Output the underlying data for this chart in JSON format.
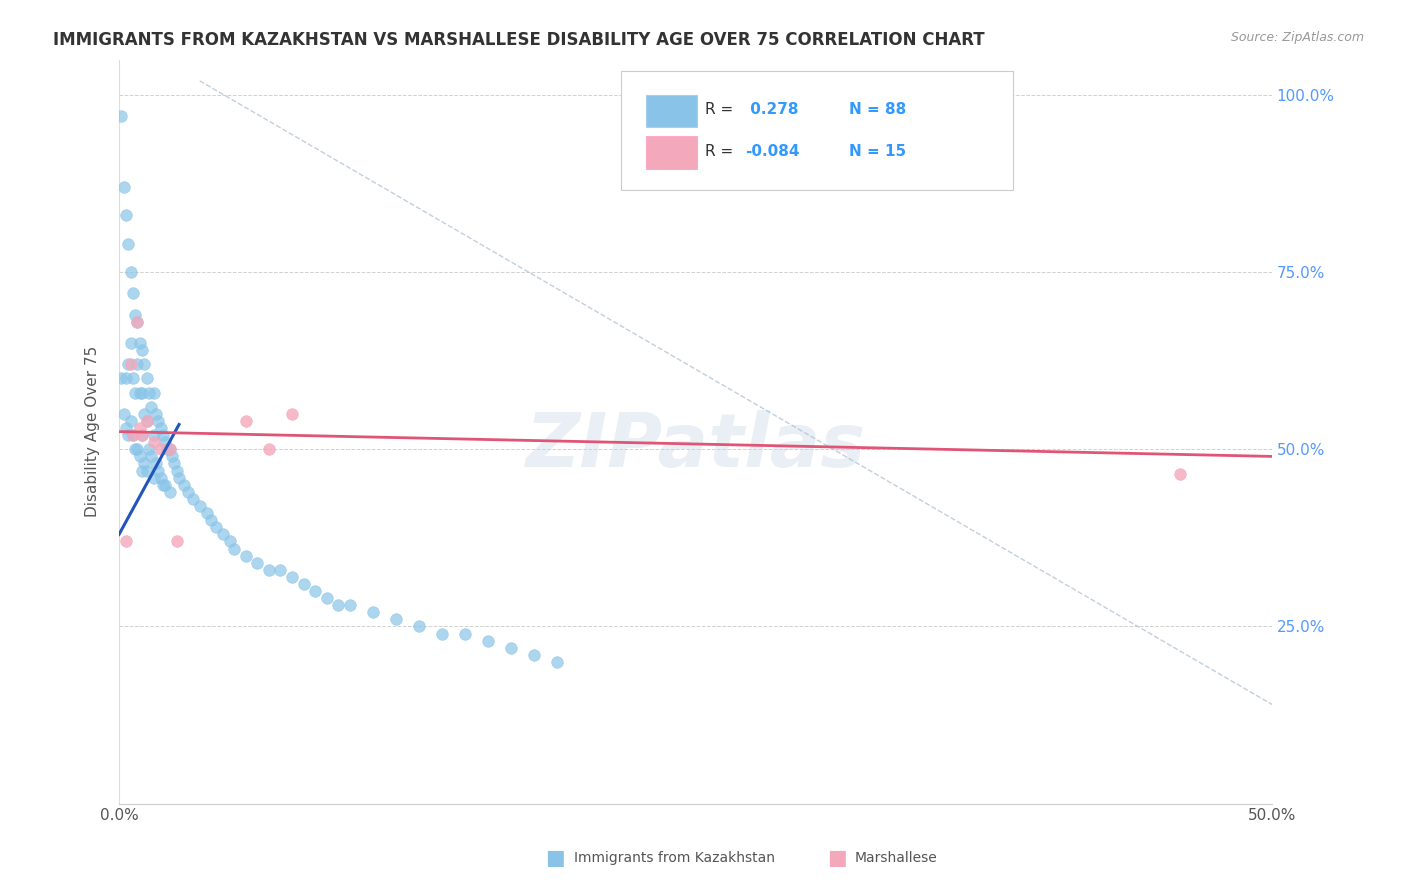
{
  "title": "IMMIGRANTS FROM KAZAKHSTAN VS MARSHALLESE DISABILITY AGE OVER 75 CORRELATION CHART",
  "source": "Source: ZipAtlas.com",
  "ylabel": "Disability Age Over 75",
  "xmin": 0.0,
  "xmax": 0.5,
  "ymin": 0.0,
  "ymax": 1.05,
  "xtick_labels": [
    "0.0%",
    "50.0%"
  ],
  "ytick_labels": [
    "25.0%",
    "50.0%",
    "75.0%",
    "100.0%"
  ],
  "ytick_values": [
    0.25,
    0.5,
    0.75,
    1.0
  ],
  "legend_label1": "Immigrants from Kazakhstan",
  "legend_label2": "Marshallese",
  "R1": 0.278,
  "N1": 88,
  "R2": -0.084,
  "N2": 15,
  "color1": "#89C4E8",
  "color2": "#F4A8BB",
  "trendline1_color": "#2255BB",
  "trendline2_color": "#E05575",
  "refline_color": "#AABBCC",
  "blue_scatter_x": [
    0.001,
    0.001,
    0.002,
    0.002,
    0.003,
    0.003,
    0.003,
    0.004,
    0.004,
    0.004,
    0.005,
    0.005,
    0.005,
    0.006,
    0.006,
    0.006,
    0.007,
    0.007,
    0.007,
    0.008,
    0.008,
    0.008,
    0.009,
    0.009,
    0.009,
    0.01,
    0.01,
    0.01,
    0.01,
    0.011,
    0.011,
    0.011,
    0.012,
    0.012,
    0.012,
    0.013,
    0.013,
    0.014,
    0.014,
    0.015,
    0.015,
    0.015,
    0.016,
    0.016,
    0.017,
    0.017,
    0.018,
    0.018,
    0.019,
    0.019,
    0.02,
    0.02,
    0.021,
    0.022,
    0.022,
    0.023,
    0.024,
    0.025,
    0.026,
    0.028,
    0.03,
    0.032,
    0.035,
    0.038,
    0.04,
    0.042,
    0.045,
    0.048,
    0.05,
    0.055,
    0.06,
    0.065,
    0.07,
    0.075,
    0.08,
    0.085,
    0.09,
    0.095,
    0.1,
    0.11,
    0.12,
    0.13,
    0.14,
    0.15,
    0.16,
    0.17,
    0.18,
    0.19
  ],
  "blue_scatter_y": [
    0.97,
    0.6,
    0.87,
    0.55,
    0.83,
    0.6,
    0.53,
    0.79,
    0.62,
    0.52,
    0.75,
    0.65,
    0.54,
    0.72,
    0.6,
    0.52,
    0.69,
    0.58,
    0.5,
    0.68,
    0.62,
    0.5,
    0.65,
    0.58,
    0.49,
    0.64,
    0.58,
    0.52,
    0.47,
    0.62,
    0.55,
    0.48,
    0.6,
    0.54,
    0.47,
    0.58,
    0.5,
    0.56,
    0.49,
    0.58,
    0.52,
    0.46,
    0.55,
    0.48,
    0.54,
    0.47,
    0.53,
    0.46,
    0.52,
    0.45,
    0.51,
    0.45,
    0.5,
    0.5,
    0.44,
    0.49,
    0.48,
    0.47,
    0.46,
    0.45,
    0.44,
    0.43,
    0.42,
    0.41,
    0.4,
    0.39,
    0.38,
    0.37,
    0.36,
    0.35,
    0.34,
    0.33,
    0.33,
    0.32,
    0.31,
    0.3,
    0.29,
    0.28,
    0.28,
    0.27,
    0.26,
    0.25,
    0.24,
    0.24,
    0.23,
    0.22,
    0.21,
    0.2
  ],
  "pink_scatter_x": [
    0.003,
    0.005,
    0.006,
    0.008,
    0.009,
    0.01,
    0.012,
    0.015,
    0.018,
    0.022,
    0.025,
    0.055,
    0.065,
    0.075,
    0.46
  ],
  "pink_scatter_y": [
    0.37,
    0.62,
    0.52,
    0.68,
    0.53,
    0.52,
    0.54,
    0.51,
    0.5,
    0.5,
    0.37,
    0.54,
    0.5,
    0.55,
    0.465
  ],
  "trendline1_x": [
    0.0,
    0.026
  ],
  "trendline1_y": [
    0.38,
    0.535
  ],
  "trendline2_x": [
    0.0,
    0.5
  ],
  "trendline2_y": [
    0.525,
    0.49
  ],
  "refline_x": [
    0.035,
    0.5
  ],
  "refline_y": [
    1.02,
    0.14
  ]
}
